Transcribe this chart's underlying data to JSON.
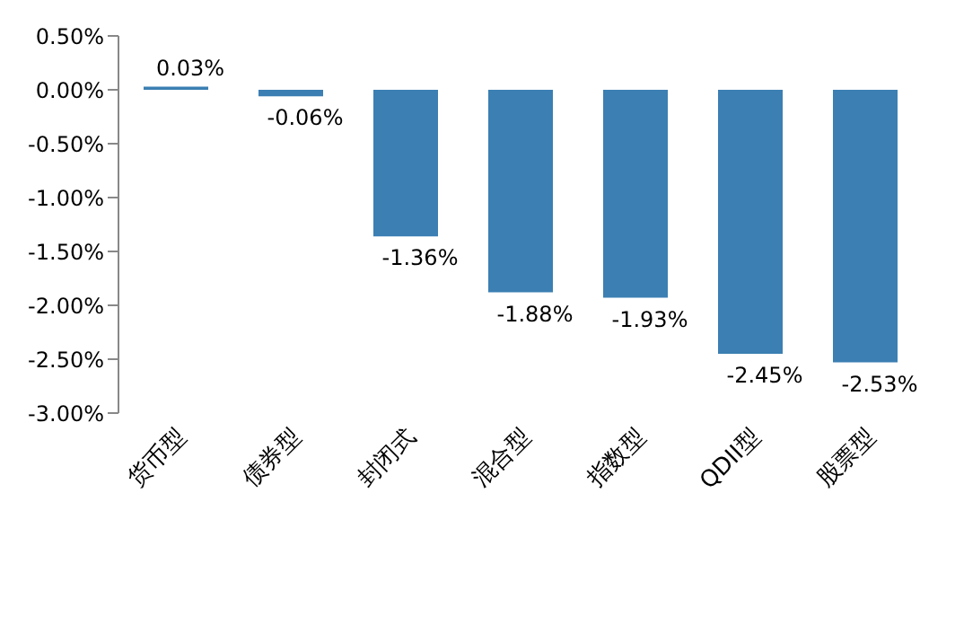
{
  "chart_data": {
    "type": "bar",
    "categories": [
      "货币型",
      "债券型",
      "封闭式",
      "混合型",
      "指数型",
      "QDII型",
      "股票型"
    ],
    "values": [
      0.03,
      -0.06,
      -1.36,
      -1.88,
      -1.93,
      -2.45,
      -2.53
    ],
    "value_labels": [
      "0.03%",
      "-0.06%",
      "-1.36%",
      "-1.88%",
      "-1.93%",
      "-2.45%",
      "-2.53%"
    ],
    "color": "#3b7fb3",
    "ylim": [
      -3,
      0.5
    ],
    "yticks": [
      {
        "value": 0.5,
        "label": "0.50%"
      },
      {
        "value": 0,
        "label": "0.00%"
      },
      {
        "value": -0.5,
        "label": "-0.50%"
      },
      {
        "value": -1,
        "label": "-1.00%"
      },
      {
        "value": -1.5,
        "label": "-1.50%"
      },
      {
        "value": -2,
        "label": "-2.00%"
      },
      {
        "value": -2.5,
        "label": "-2.50%"
      },
      {
        "value": -3,
        "label": "-3.00%"
      }
    ],
    "grid": false,
    "legend": false
  }
}
